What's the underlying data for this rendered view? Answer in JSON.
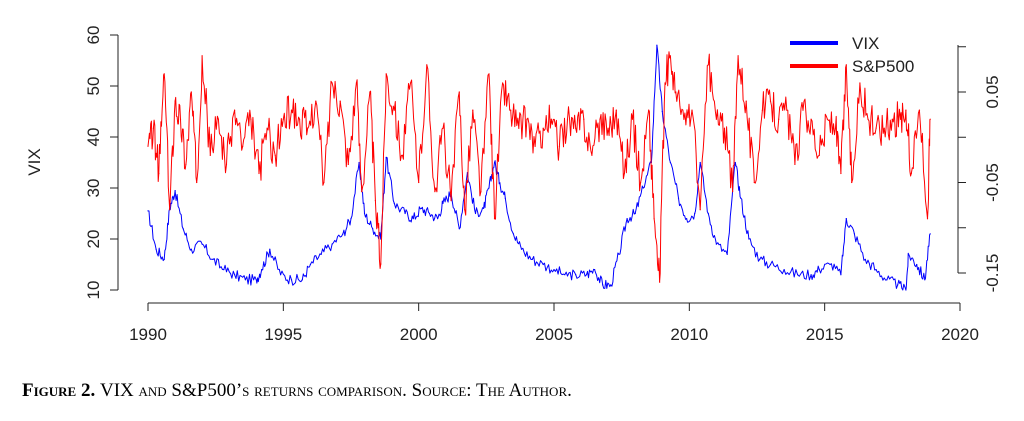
{
  "chart_data": {
    "type": "line",
    "ylabel": "VIX",
    "xlim": [
      1990,
      2020
    ],
    "ylim_left": [
      10,
      60
    ],
    "ylim_right": [
      -0.15,
      0.05
    ],
    "x_ticks": [
      "1990",
      "1995",
      "2000",
      "2005",
      "2010",
      "2015",
      "2020"
    ],
    "y_ticks_left": [
      "10",
      "20",
      "30",
      "40",
      "50",
      "60"
    ],
    "y_ticks_right": [
      "-0.15",
      "-0.05",
      "0.05"
    ],
    "legend_position": "top-right",
    "series": [
      {
        "name": "VIX",
        "color": "#0000ff",
        "axis": "left",
        "x": [
          1990.0,
          1990.3,
          1990.6,
          1990.8,
          1991.0,
          1991.3,
          1991.6,
          1992.0,
          1992.4,
          1992.8,
          1993.2,
          1993.6,
          1994.0,
          1994.2,
          1994.5,
          1994.9,
          1995.3,
          1995.7,
          1996.0,
          1996.4,
          1996.8,
          1997.2,
          1997.5,
          1997.8,
          1998.0,
          1998.3,
          1998.6,
          1998.8,
          1999.1,
          1999.5,
          1999.8,
          2000.1,
          2000.4,
          2000.7,
          2000.9,
          2001.2,
          2001.5,
          2001.8,
          2002.1,
          2002.4,
          2002.6,
          2002.8,
          2003.0,
          2003.2,
          2003.5,
          2003.8,
          2004.2,
          2004.6,
          2005.0,
          2005.4,
          2005.8,
          2006.2,
          2006.5,
          2006.8,
          2007.1,
          2007.4,
          2007.7,
          2008.0,
          2008.3,
          2008.6,
          2008.8,
          2009.0,
          2009.3,
          2009.6,
          2009.9,
          2010.2,
          2010.4,
          2010.7,
          2011.0,
          2011.4,
          2011.7,
          2011.9,
          2012.2,
          2012.6,
          2013.0,
          2013.5,
          2014.0,
          2014.5,
          2014.8,
          2015.2,
          2015.6,
          2015.8,
          2016.1,
          2016.5,
          2016.9,
          2017.3,
          2017.7,
          2018.0,
          2018.1,
          2018.4,
          2018.7,
          2018.9
        ],
        "values": [
          25.5,
          18,
          16,
          26,
          29.5,
          22,
          18,
          19,
          16,
          14,
          13,
          12,
          12,
          14,
          18,
          13,
          12,
          12,
          15,
          17,
          19,
          21,
          24,
          35,
          25,
          22,
          20,
          36,
          27,
          25,
          24,
          26,
          25,
          24,
          27,
          29,
          22,
          33,
          25,
          26,
          30,
          35,
          31,
          28,
          21,
          18,
          16,
          15,
          14,
          13,
          13,
          13,
          14,
          11,
          11,
          17,
          24,
          25,
          30,
          35,
          58,
          45,
          35,
          28,
          24,
          25,
          35,
          25,
          19,
          17,
          35,
          28,
          20,
          16,
          15,
          14,
          13,
          13,
          14,
          15,
          13,
          24,
          21,
          16,
          14,
          12,
          11,
          10,
          17,
          15,
          12,
          21
        ]
      },
      {
        "name": "S&P500",
        "color": "#ff0000",
        "axis": "right",
        "x": [
          1990.0,
          1990.2,
          1990.4,
          1990.6,
          1990.8,
          1991.0,
          1991.2,
          1991.4,
          1991.6,
          1991.8,
          1992.0,
          1992.3,
          1992.6,
          1992.9,
          1993.2,
          1993.5,
          1993.8,
          1994.1,
          1994.4,
          1994.7,
          1995.0,
          1995.3,
          1995.6,
          1995.9,
          1996.2,
          1996.5,
          1996.8,
          1997.1,
          1997.4,
          1997.7,
          1997.9,
          1998.2,
          1998.4,
          1998.6,
          1998.8,
          1999.1,
          1999.4,
          1999.7,
          2000.0,
          2000.3,
          2000.6,
          2000.9,
          2001.2,
          2001.5,
          2001.7,
          2002.0,
          2002.3,
          2002.6,
          2002.8,
          2003.1,
          2003.4,
          2003.7,
          2004.0,
          2004.3,
          2004.6,
          2004.9,
          2005.2,
          2005.5,
          2005.8,
          2006.1,
          2006.4,
          2006.7,
          2007.0,
          2007.3,
          2007.6,
          2007.9,
          2008.2,
          2008.5,
          2008.7,
          2008.9,
          2009.1,
          2009.3,
          2009.5,
          2009.8,
          2010.1,
          2010.4,
          2010.7,
          2011.0,
          2011.3,
          2011.6,
          2011.8,
          2012.1,
          2012.4,
          2012.7,
          2013.0,
          2013.3,
          2013.6,
          2013.9,
          2014.2,
          2014.5,
          2014.8,
          2015.1,
          2015.4,
          2015.6,
          2015.8,
          2016.0,
          2016.3,
          2016.6,
          2016.9,
          2017.2,
          2017.5,
          2017.8,
          2018.0,
          2018.2,
          2018.5,
          2018.8,
          2018.9
        ],
        "values": [
          -0.01,
          0.01,
          -0.04,
          0.07,
          -0.08,
          0.04,
          0.02,
          -0.03,
          0.05,
          -0.05,
          0.09,
          -0.02,
          0.02,
          -0.03,
          0.03,
          -0.01,
          0.02,
          -0.04,
          0.01,
          -0.02,
          0.02,
          0.03,
          0.02,
          0.01,
          0.04,
          -0.05,
          0.06,
          0.04,
          -0.03,
          0.06,
          -0.06,
          0.05,
          -0.07,
          -0.14,
          0.07,
          0.03,
          -0.02,
          0.06,
          -0.05,
          0.08,
          -0.06,
          0.01,
          -0.07,
          0.05,
          -0.08,
          0.03,
          -0.06,
          0.07,
          -0.09,
          0.06,
          0.03,
          0.01,
          0.02,
          -0.01,
          0.01,
          0.02,
          -0.01,
          0.02,
          0.01,
          0.02,
          -0.02,
          0.02,
          0.01,
          0.03,
          -0.04,
          0.02,
          -0.05,
          0.03,
          -0.09,
          -0.16,
          0.06,
          0.09,
          0.05,
          0.02,
          0.03,
          -0.08,
          0.08,
          0.02,
          0.01,
          -0.06,
          0.09,
          0.04,
          -0.05,
          0.03,
          0.04,
          0.02,
          0.03,
          -0.03,
          0.03,
          0.02,
          -0.02,
          0.02,
          0.01,
          -0.04,
          0.08,
          -0.05,
          0.06,
          0.02,
          0.01,
          0.01,
          0.02,
          0.02,
          0.03,
          -0.04,
          0.03,
          -0.09,
          0.02
        ]
      }
    ]
  },
  "caption": {
    "label": "Figure 2.",
    "text": "VIX and S&P500’s returns comparison. Source: The Author."
  }
}
